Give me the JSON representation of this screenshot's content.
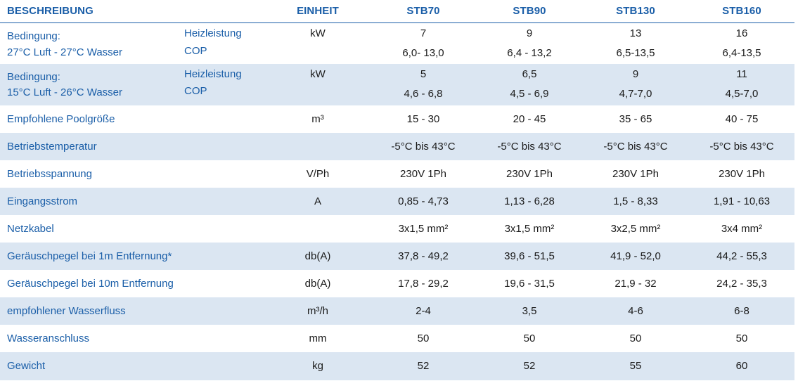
{
  "header": {
    "beschreibung": "BESCHREIBUNG",
    "einheit": "EINHEIT",
    "models": [
      "STB70",
      "STB90",
      "STB130",
      "STB160"
    ]
  },
  "rows": [
    {
      "label_line1": "Bedingung:",
      "label_line2": "27°C Luft - 27°C Wasser",
      "sub1": "Heizleistung",
      "sub2": "COP",
      "unit": "kW",
      "values_line1": [
        "7",
        "9",
        "13",
        "16"
      ],
      "values_line2": [
        "6,0- 13,0",
        "6,4 - 13,2",
        "6,5-13,5",
        "6,4-13,5"
      ]
    },
    {
      "label_line1": "Bedingung:",
      "label_line2": "15°C Luft - 26°C Wasser",
      "sub1": "Heizleistung",
      "sub2": "COP",
      "unit": "kW",
      "values_line1": [
        "5",
        "6,5",
        "9",
        "11"
      ],
      "values_line2": [
        "4,6 - 6,8",
        "4,5 - 6,9",
        "4,7-7,0",
        "4,5-7,0"
      ]
    },
    {
      "label": "Empfohlene Poolgröße",
      "unit": "m³",
      "values": [
        "15 - 30",
        "20 - 45",
        "35 - 65",
        "40 - 75"
      ]
    },
    {
      "label": "Betriebstemperatur",
      "unit": "",
      "values": [
        "-5°C bis 43°C",
        "-5°C bis 43°C",
        "-5°C bis 43°C",
        "-5°C bis 43°C"
      ]
    },
    {
      "label": "Betriebsspannung",
      "unit": "V/Ph",
      "values": [
        "230V 1Ph",
        "230V 1Ph",
        "230V 1Ph",
        "230V 1Ph"
      ]
    },
    {
      "label": "Eingangsstrom",
      "unit": "A",
      "values": [
        "0,85 - 4,73",
        "1,13 - 6,28",
        "1,5 - 8,33",
        "1,91 - 10,63"
      ]
    },
    {
      "label": "Netzkabel",
      "unit": "",
      "values": [
        "3x1,5 mm²",
        "3x1,5 mm²",
        "3x2,5 mm²",
        "3x4 mm²"
      ]
    },
    {
      "label": "Geräuschpegel bei 1m Entfernung*",
      "unit": "db(A)",
      "values": [
        "37,8 - 49,2",
        "39,6 - 51,5",
        "41,9 - 52,0",
        "44,2 - 55,3"
      ]
    },
    {
      "label": "Geräuschpegel bei 10m Entfernung",
      "unit": "db(A)",
      "values": [
        "17,8 - 29,2",
        "19,6 - 31,5",
        "21,9 - 32",
        "24,2 - 35,3"
      ]
    },
    {
      "label": "empfohlener Wasserfluss",
      "unit": "m³/h",
      "values": [
        "2-4",
        "3,5",
        "4-6",
        "6-8"
      ]
    },
    {
      "label": "Wasseranschluss",
      "unit": "mm",
      "values": [
        "50",
        "50",
        "50",
        "50"
      ]
    },
    {
      "label": "Gewicht",
      "unit": "kg",
      "values": [
        "52",
        "52",
        "55",
        "60"
      ]
    }
  ],
  "colors": {
    "accent": "#1a5ea8",
    "shade": "#dbe6f2",
    "text": "#1a1a1a"
  }
}
